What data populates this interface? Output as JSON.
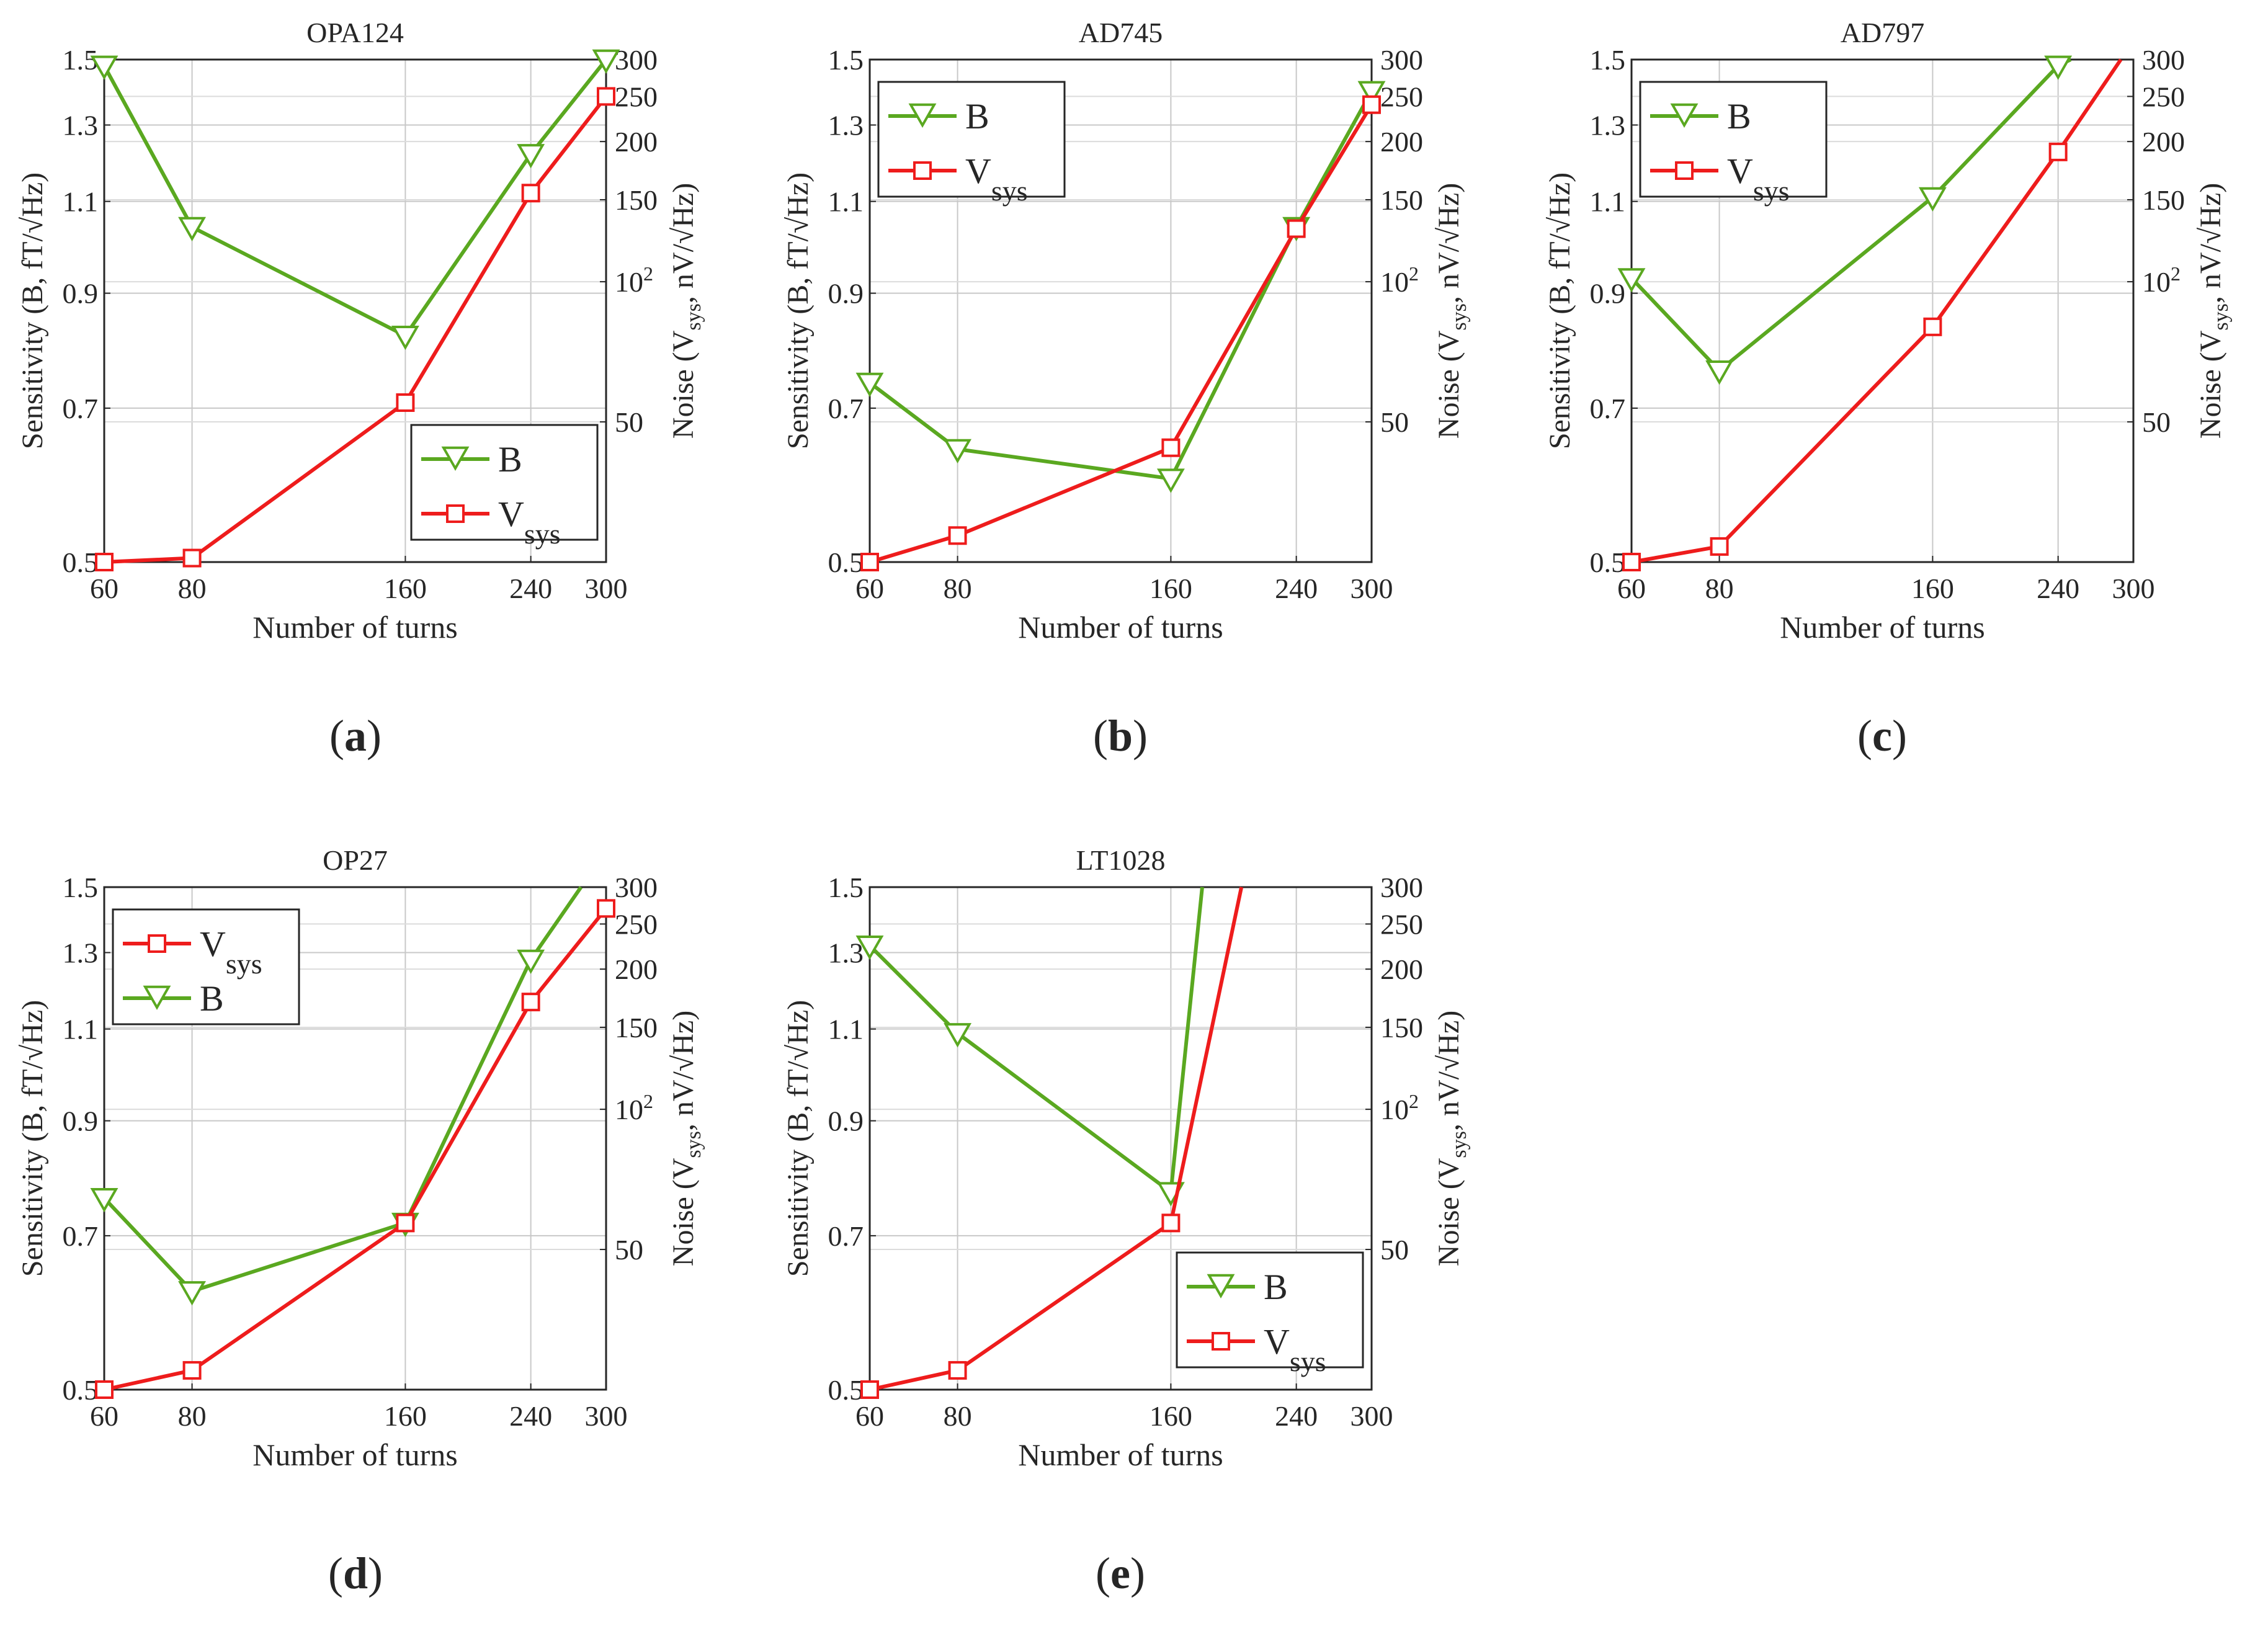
{
  "colors": {
    "B": "#5aa820",
    "Vsys": "#ee1c1c",
    "axis": "#262626",
    "grid": "#c8c8c8"
  },
  "chart_data": [
    {
      "type": "line",
      "panel_label": "a",
      "title": "OPA124",
      "xlabel": "Number of turns",
      "ylabel_left": "Sensitivity (B, fT/√Hz)",
      "ylabel_right": "Noise (Vsys, nV/√Hz)",
      "x_ticks": [
        "60",
        "80",
        "160",
        "240",
        "300"
      ],
      "y_left_ticks": [
        "0.5",
        "0.7",
        "0.9",
        "1.1",
        "1.3",
        "1.5"
      ],
      "y_right_ticks": [
        "50",
        "10^2",
        "150",
        "200",
        "250",
        "300"
      ],
      "ylim_left": [
        0.5,
        1.5
      ],
      "ylim_right": [
        25,
        300
      ],
      "legend_position": "bottom-right",
      "legend_order": [
        "B",
        "Vsys"
      ],
      "series": [
        {
          "key": "B",
          "name": "B",
          "axis": "left",
          "x": [
            60,
            80,
            160,
            240,
            300
          ],
          "values": [
            1.48,
            1.04,
            0.82,
            1.22,
            1.5
          ]
        },
        {
          "key": "Vsys",
          "name": "V",
          "subscript": "sys",
          "axis": "right",
          "x": [
            60,
            80,
            160,
            240,
            300
          ],
          "values": [
            25,
            25.5,
            55,
            155,
            250
          ]
        }
      ]
    },
    {
      "type": "line",
      "panel_label": "b",
      "title": "AD745",
      "xlabel": "Number of turns",
      "ylabel_left": "Sensitivity (B, fT/√Hz)",
      "ylabel_right": "Noise (Vsys, nV/√Hz)",
      "x_ticks": [
        "60",
        "80",
        "160",
        "240",
        "300"
      ],
      "y_left_ticks": [
        "0.5",
        "0.7",
        "0.9",
        "1.1",
        "1.3",
        "1.5"
      ],
      "y_right_ticks": [
        "50",
        "10^2",
        "150",
        "200",
        "250",
        "300"
      ],
      "ylim_left": [
        0.5,
        1.5
      ],
      "ylim_right": [
        25,
        300
      ],
      "legend_position": "top-left",
      "legend_order": [
        "B",
        "Vsys"
      ],
      "series": [
        {
          "key": "B",
          "name": "B",
          "axis": "left",
          "x": [
            60,
            80,
            160,
            240,
            300
          ],
          "values": [
            0.74,
            0.64,
            0.6,
            1.04,
            1.4
          ]
        },
        {
          "key": "Vsys",
          "name": "V",
          "subscript": "sys",
          "axis": "right",
          "x": [
            60,
            80,
            160,
            240,
            300
          ],
          "values": [
            25,
            28.5,
            44,
            130,
            240
          ]
        }
      ]
    },
    {
      "type": "line",
      "panel_label": "c",
      "title": "AD797",
      "xlabel": "Number of turns",
      "ylabel_left": "Sensitivity (B, fT/√Hz)",
      "ylabel_right": "Noise (Vsys, nV/√Hz)",
      "x_ticks": [
        "60",
        "80",
        "160",
        "240",
        "300"
      ],
      "y_left_ticks": [
        "0.5",
        "0.7",
        "0.9",
        "1.1",
        "1.3",
        "1.5"
      ],
      "y_right_ticks": [
        "50",
        "10^2",
        "150",
        "200",
        "250",
        "300"
      ],
      "ylim_left": [
        0.5,
        1.5
      ],
      "ylim_right": [
        25,
        300
      ],
      "legend_position": "top-left",
      "legend_order": [
        "B",
        "Vsys"
      ],
      "series": [
        {
          "key": "B",
          "name": "B",
          "axis": "left",
          "x": [
            60,
            80,
            160,
            240
          ],
          "values": [
            0.93,
            0.76,
            1.11,
            1.48
          ],
          "line_x": [
            60,
            80,
            160,
            240,
            250
          ],
          "line_values": [
            0.93,
            0.76,
            1.11,
            1.48,
            1.5
          ]
        },
        {
          "key": "Vsys",
          "name": "V",
          "subscript": "sys",
          "axis": "right",
          "x": [
            60,
            80,
            160,
            240
          ],
          "values": [
            25,
            27,
            80,
            190
          ],
          "line_x": [
            60,
            80,
            160,
            240,
            290
          ],
          "line_values": [
            25,
            27,
            80,
            190,
            300
          ]
        }
      ]
    },
    {
      "type": "line",
      "panel_label": "d",
      "title": "OP27",
      "xlabel": "Number of turns",
      "ylabel_left": "Sensitivity (B, fT/√Hz)",
      "ylabel_right": "Noise (Vsys, nV/√Hz)",
      "x_ticks": [
        "60",
        "80",
        "160",
        "240",
        "300"
      ],
      "y_left_ticks": [
        "0.5",
        "0.7",
        "0.9",
        "1.1",
        "1.3",
        "1.5"
      ],
      "y_right_ticks": [
        "50",
        "10^2",
        "150",
        "200",
        "250",
        "300"
      ],
      "ylim_left": [
        0.5,
        1.5
      ],
      "ylim_right": [
        25,
        300
      ],
      "legend_position": "top-left",
      "legend_order": [
        "Vsys",
        "B"
      ],
      "series": [
        {
          "key": "B",
          "name": "B",
          "axis": "left",
          "x": [
            60,
            80,
            160,
            240
          ],
          "values": [
            0.76,
            0.62,
            0.72,
            1.28
          ],
          "line_x": [
            60,
            80,
            160,
            240,
            280
          ],
          "line_values": [
            0.76,
            0.62,
            0.72,
            1.28,
            1.5
          ]
        },
        {
          "key": "Vsys",
          "name": "V",
          "subscript": "sys",
          "axis": "right",
          "x": [
            60,
            80,
            160,
            240,
            300
          ],
          "values": [
            25,
            27.5,
            57,
            170,
            270
          ]
        }
      ]
    },
    {
      "type": "line",
      "panel_label": "e",
      "title": "LT1028",
      "xlabel": "Number of turns",
      "ylabel_left": "Sensitivity (B, fT/√Hz)",
      "ylabel_right": "Noise (Vsys, nV/√Hz)",
      "x_ticks": [
        "60",
        "80",
        "160",
        "240",
        "300"
      ],
      "y_left_ticks": [
        "0.5",
        "0.7",
        "0.9",
        "1.1",
        "1.3",
        "1.5"
      ],
      "y_right_ticks": [
        "50",
        "10^2",
        "150",
        "200",
        "250",
        "300"
      ],
      "ylim_left": [
        0.5,
        1.5
      ],
      "ylim_right": [
        25,
        300
      ],
      "legend_position": "bottom-right",
      "legend_order": [
        "B",
        "Vsys"
      ],
      "series": [
        {
          "key": "B",
          "name": "B",
          "axis": "left",
          "x": [
            60,
            80,
            160
          ],
          "values": [
            1.32,
            1.09,
            0.77
          ],
          "line_x": [
            60,
            80,
            160,
            180
          ],
          "line_values": [
            1.32,
            1.09,
            0.77,
            1.5
          ]
        },
        {
          "key": "Vsys",
          "name": "V",
          "subscript": "sys",
          "axis": "right",
          "x": [
            60,
            80,
            160
          ],
          "values": [
            25,
            27.5,
            57
          ],
          "line_x": [
            60,
            80,
            160,
            205
          ],
          "line_values": [
            25,
            27.5,
            57,
            300
          ]
        }
      ]
    }
  ]
}
